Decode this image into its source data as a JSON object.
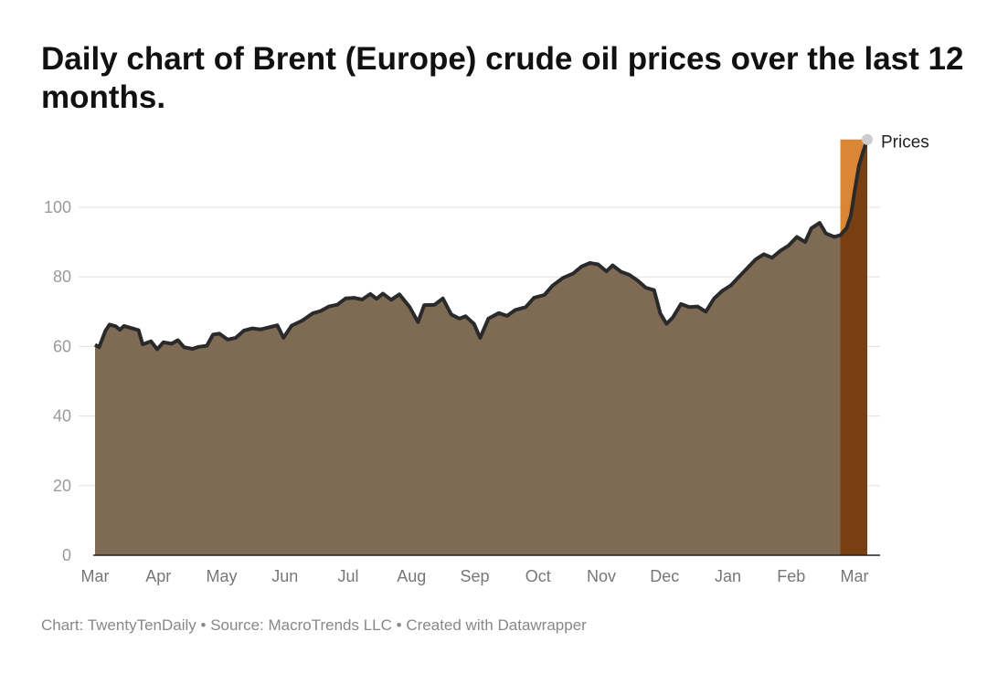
{
  "title": "Daily chart of Brent (Europe) crude oil prices over the last 12 months.",
  "footer": {
    "credit": "Chart: TwentyTenDaily",
    "source": "Source: MacroTrends LLC",
    "created": "Created with Datawrapper",
    "separator": "•"
  },
  "colors": {
    "area_fill": "#7f6a54",
    "line": "#2a2a2a",
    "highlight_upper": "#d97e2c",
    "highlight_lower": "#784012",
    "grid": "#e0e0e0",
    "end_marker": "#cccccc"
  },
  "chart_data": {
    "type": "area",
    "title": "Daily chart of Brent (Europe) crude oil prices over the last 12 months.",
    "xlabel": "",
    "ylabel": "",
    "ylim": [
      0,
      120
    ],
    "yticks": [
      0,
      20,
      40,
      60,
      80,
      100
    ],
    "x_tick_labels": [
      "Mar",
      "Apr",
      "May",
      "Jun",
      "Jul",
      "Aug",
      "Sep",
      "Oct",
      "Nov",
      "Dec",
      "Jan",
      "Feb",
      "Mar"
    ],
    "grid": true,
    "series": [
      {
        "name": "Prices",
        "points": [
          [
            "2021-03-01",
            60.5
          ],
          [
            "2021-03-03",
            59.8
          ],
          [
            "2021-03-06",
            64.5
          ],
          [
            "2021-03-08",
            66.3
          ],
          [
            "2021-03-11",
            65.8
          ],
          [
            "2021-03-13",
            64.8
          ],
          [
            "2021-03-15",
            65.9
          ],
          [
            "2021-03-19",
            65.2
          ],
          [
            "2021-03-22",
            64.7
          ],
          [
            "2021-03-24",
            60.6
          ],
          [
            "2021-03-28",
            61.5
          ],
          [
            "2021-03-31",
            59.2
          ],
          [
            "2021-04-03",
            61.2
          ],
          [
            "2021-04-07",
            60.8
          ],
          [
            "2021-04-10",
            61.8
          ],
          [
            "2021-04-13",
            59.8
          ],
          [
            "2021-04-17",
            59.3
          ],
          [
            "2021-04-20",
            59.9
          ],
          [
            "2021-04-24",
            60.2
          ],
          [
            "2021-04-27",
            63.4
          ],
          [
            "2021-04-30",
            63.7
          ],
          [
            "2021-05-04",
            62.0
          ],
          [
            "2021-05-08",
            62.5
          ],
          [
            "2021-05-12",
            64.6
          ],
          [
            "2021-05-16",
            65.2
          ],
          [
            "2021-05-20",
            64.9
          ],
          [
            "2021-05-24",
            65.5
          ],
          [
            "2021-05-28",
            66.1
          ],
          [
            "2021-05-31",
            62.5
          ],
          [
            "2021-06-04",
            66.0
          ],
          [
            "2021-06-09",
            67.4
          ],
          [
            "2021-06-14",
            69.5
          ],
          [
            "2021-06-18",
            70.2
          ],
          [
            "2021-06-22",
            71.5
          ],
          [
            "2021-06-26",
            72.0
          ],
          [
            "2021-06-30",
            73.8
          ],
          [
            "2021-07-04",
            74.0
          ],
          [
            "2021-07-08",
            73.5
          ],
          [
            "2021-07-12",
            75.1
          ],
          [
            "2021-07-15",
            73.7
          ],
          [
            "2021-07-18",
            75.2
          ],
          [
            "2021-07-22",
            73.4
          ],
          [
            "2021-07-26",
            75.0
          ],
          [
            "2021-07-31",
            71.3
          ],
          [
            "2021-08-04",
            67.0
          ],
          [
            "2021-08-07",
            71.9
          ],
          [
            "2021-08-12",
            72.0
          ],
          [
            "2021-08-16",
            73.8
          ],
          [
            "2021-08-20",
            69.2
          ],
          [
            "2021-08-24",
            68.0
          ],
          [
            "2021-08-27",
            68.7
          ],
          [
            "2021-08-31",
            66.5
          ],
          [
            "2021-09-03",
            62.5
          ],
          [
            "2021-09-07",
            68.0
          ],
          [
            "2021-09-12",
            69.6
          ],
          [
            "2021-09-16",
            68.8
          ],
          [
            "2021-09-20",
            70.5
          ],
          [
            "2021-09-25",
            71.3
          ],
          [
            "2021-09-29",
            74.0
          ],
          [
            "2021-10-04",
            74.8
          ],
          [
            "2021-10-08",
            77.5
          ],
          [
            "2021-10-13",
            79.7
          ],
          [
            "2021-10-18",
            81.0
          ],
          [
            "2021-10-22",
            83.0
          ],
          [
            "2021-10-26",
            84.0
          ],
          [
            "2021-10-30",
            83.6
          ],
          [
            "2021-11-03",
            81.6
          ],
          [
            "2021-11-06",
            83.3
          ],
          [
            "2021-11-10",
            81.5
          ],
          [
            "2021-11-14",
            80.6
          ],
          [
            "2021-11-18",
            79.0
          ],
          [
            "2021-11-22",
            76.9
          ],
          [
            "2021-11-26",
            76.2
          ],
          [
            "2021-11-29",
            69.5
          ],
          [
            "2021-12-02",
            66.5
          ],
          [
            "2021-12-05",
            68.3
          ],
          [
            "2021-12-09",
            72.2
          ],
          [
            "2021-12-13",
            71.3
          ],
          [
            "2021-12-17",
            71.5
          ],
          [
            "2021-12-21",
            70.0
          ],
          [
            "2021-12-25",
            73.8
          ],
          [
            "2021-12-29",
            76.0
          ],
          [
            "2022-01-02",
            77.5
          ],
          [
            "2022-01-06",
            80.0
          ],
          [
            "2022-01-10",
            82.5
          ],
          [
            "2022-01-14",
            85.0
          ],
          [
            "2022-01-18",
            86.5
          ],
          [
            "2022-01-22",
            85.5
          ],
          [
            "2022-01-26",
            87.5
          ],
          [
            "2022-01-30",
            89.0
          ],
          [
            "2022-02-03",
            91.5
          ],
          [
            "2022-02-07",
            90.0
          ],
          [
            "2022-02-10",
            94.0
          ],
          [
            "2022-02-14",
            95.5
          ],
          [
            "2022-02-17",
            92.5
          ],
          [
            "2022-02-21",
            91.5
          ],
          [
            "2022-02-24",
            92.0
          ],
          [
            "2022-02-27",
            94.0
          ],
          [
            "2022-03-01",
            97.5
          ],
          [
            "2022-03-03",
            105.0
          ],
          [
            "2022-03-05",
            112.0
          ],
          [
            "2022-03-07",
            116.0
          ],
          [
            "2022-03-09",
            119.5
          ]
        ]
      }
    ],
    "highlight_range": {
      "start": "2022-02-24",
      "end": "2022-03-09",
      "value": 119.5
    }
  }
}
